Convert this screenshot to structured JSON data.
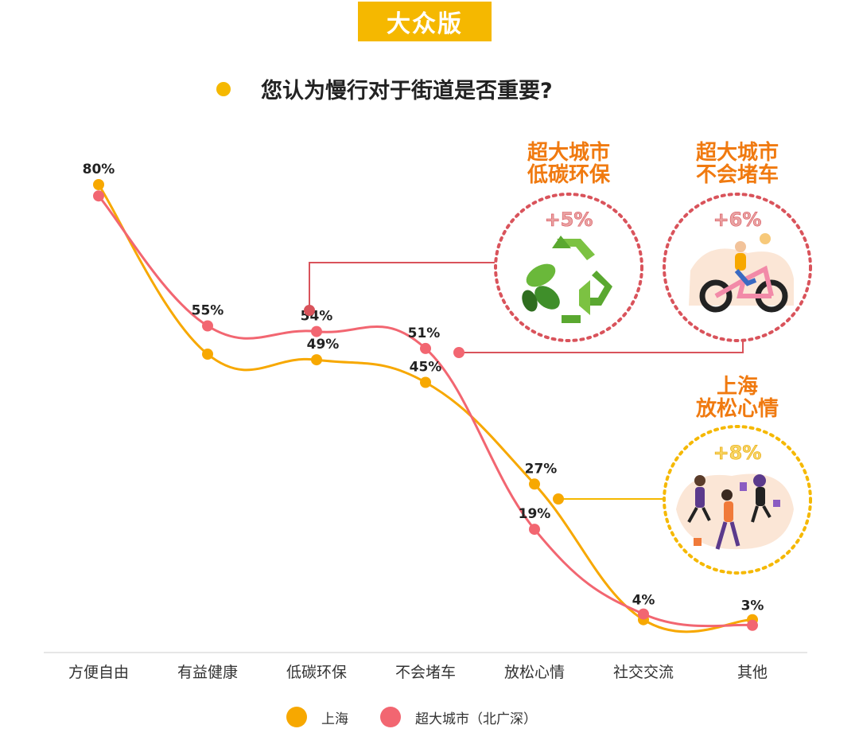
{
  "badge": "大众版",
  "question": "您认为慢行对于街道是否重要?",
  "colors": {
    "shanghai": "#f7a800",
    "mega": "#f26671",
    "accent": "#f5b800",
    "connector": "#d9535b"
  },
  "callouts": [
    {
      "title": "超大城市\n低碳环保",
      "delta": "+5%",
      "icon": "recycle-icon"
    },
    {
      "title": "超大城市\n不会堵车",
      "delta": "+6%",
      "icon": "bicycle-rider-icon"
    },
    {
      "title": "上海\n放松心情",
      "delta": "+8%",
      "icon": "jumping-people-icon"
    }
  ],
  "legend": [
    "上海",
    "超大城市（北广深）"
  ],
  "chart_data": {
    "type": "line",
    "categories": [
      "方便自由",
      "有益健康",
      "低碳环保",
      "不会堵车",
      "放松心情",
      "社交交流",
      "其他"
    ],
    "series": [
      {
        "name": "上海",
        "values": [
          80,
          50,
          49,
          45,
          27,
          3,
          3
        ],
        "labels": [
          "80%",
          "",
          "49%",
          "45%",
          "27%",
          "",
          "3%"
        ]
      },
      {
        "name": "超大城市（北广深）",
        "values": [
          78,
          55,
          54,
          51,
          19,
          4,
          2
        ],
        "labels": [
          "",
          "55%",
          "54%",
          "51%",
          "19%",
          "4%",
          ""
        ]
      }
    ],
    "ylim": [
      0,
      85
    ],
    "grid": false,
    "legend_position": "bottom"
  }
}
